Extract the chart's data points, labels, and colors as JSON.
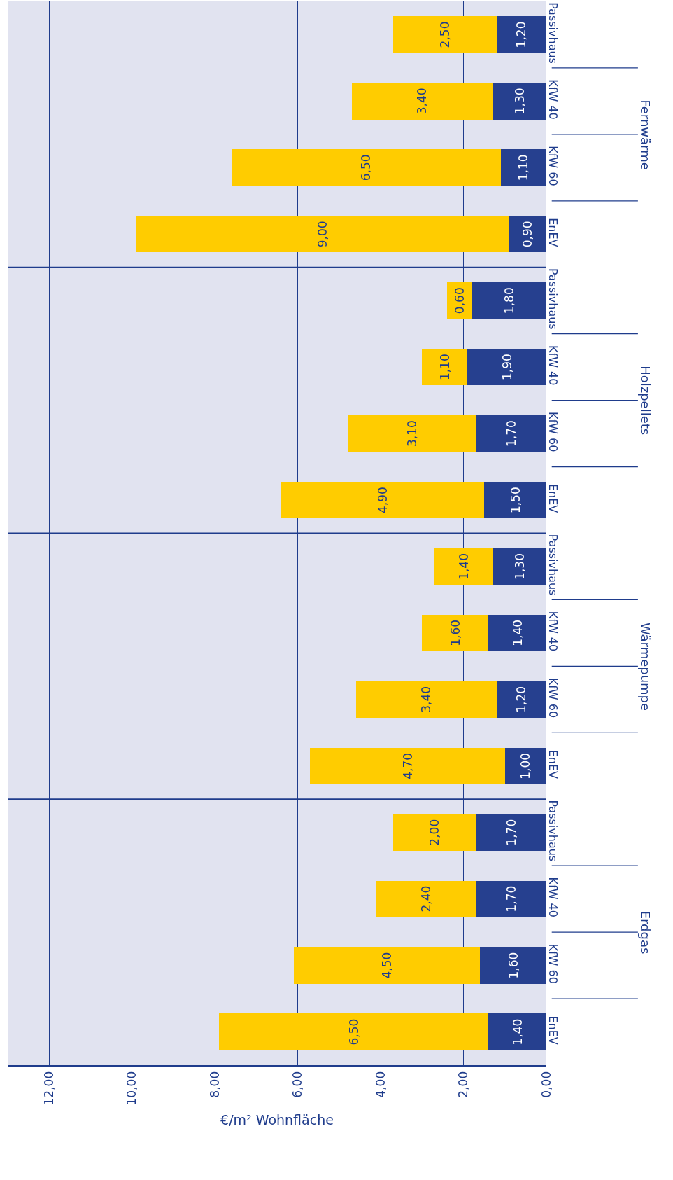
{
  "chart_data": {
    "type": "bar",
    "orientation": "horizontal",
    "stacked": true,
    "xlabel": "€/m² Wohnfläche",
    "categories": [
      "Passivhaus",
      "KfW 40",
      "KfW 60",
      "EnEV",
      "Passivhaus",
      "KfW 40",
      "KfW 60",
      "EnEV",
      "Passivhaus",
      "KfW 40",
      "KfW 60",
      "EnEV",
      "Passivhaus",
      "KfW 40",
      "KfW 60",
      "EnEV"
    ],
    "series": [
      {
        "color": "#26408f",
        "values": [
          1.2,
          1.3,
          1.1,
          0.9,
          1.8,
          1.9,
          1.7,
          1.5,
          1.3,
          1.4,
          1.2,
          1.0,
          1.7,
          1.7,
          1.6,
          1.4
        ],
        "value_labels": [
          "1,20",
          "1,30",
          "1,10",
          "0,90",
          "1,80",
          "1,90",
          "1,70",
          "1,50",
          "1,30",
          "1,40",
          "1,20",
          "1,00",
          "1,70",
          "1,70",
          "1,60",
          "1,40"
        ]
      },
      {
        "color": "#ffcc00",
        "values": [
          2.5,
          3.4,
          6.5,
          9.0,
          0.6,
          1.1,
          3.1,
          4.9,
          1.4,
          1.6,
          3.4,
          4.7,
          2.0,
          2.4,
          4.5,
          6.5
        ],
        "value_labels": [
          "2,50",
          "3,40",
          "6,50",
          "9,00",
          "0,60",
          "1,10",
          "3,10",
          "4,90",
          "1,40",
          "1,60",
          "3,40",
          "4,70",
          "2,00",
          "2,40",
          "4,50",
          "6,50"
        ]
      }
    ],
    "annotations": [
      "Fernwärme",
      "Holzpellets",
      "Wärmepumpe",
      "Erdgas"
    ],
    "xlim": [
      13,
      0
    ],
    "xticks": [
      {
        "value": 0,
        "label": "0,00"
      },
      {
        "value": 2,
        "label": "2,00"
      },
      {
        "value": 4,
        "label": "4,00"
      },
      {
        "value": 6,
        "label": "6,00"
      },
      {
        "value": 8,
        "label": "8,00"
      },
      {
        "value": 10,
        "label": "10,00"
      },
      {
        "value": 12,
        "label": "12,00"
      }
    ],
    "grid": "x"
  }
}
